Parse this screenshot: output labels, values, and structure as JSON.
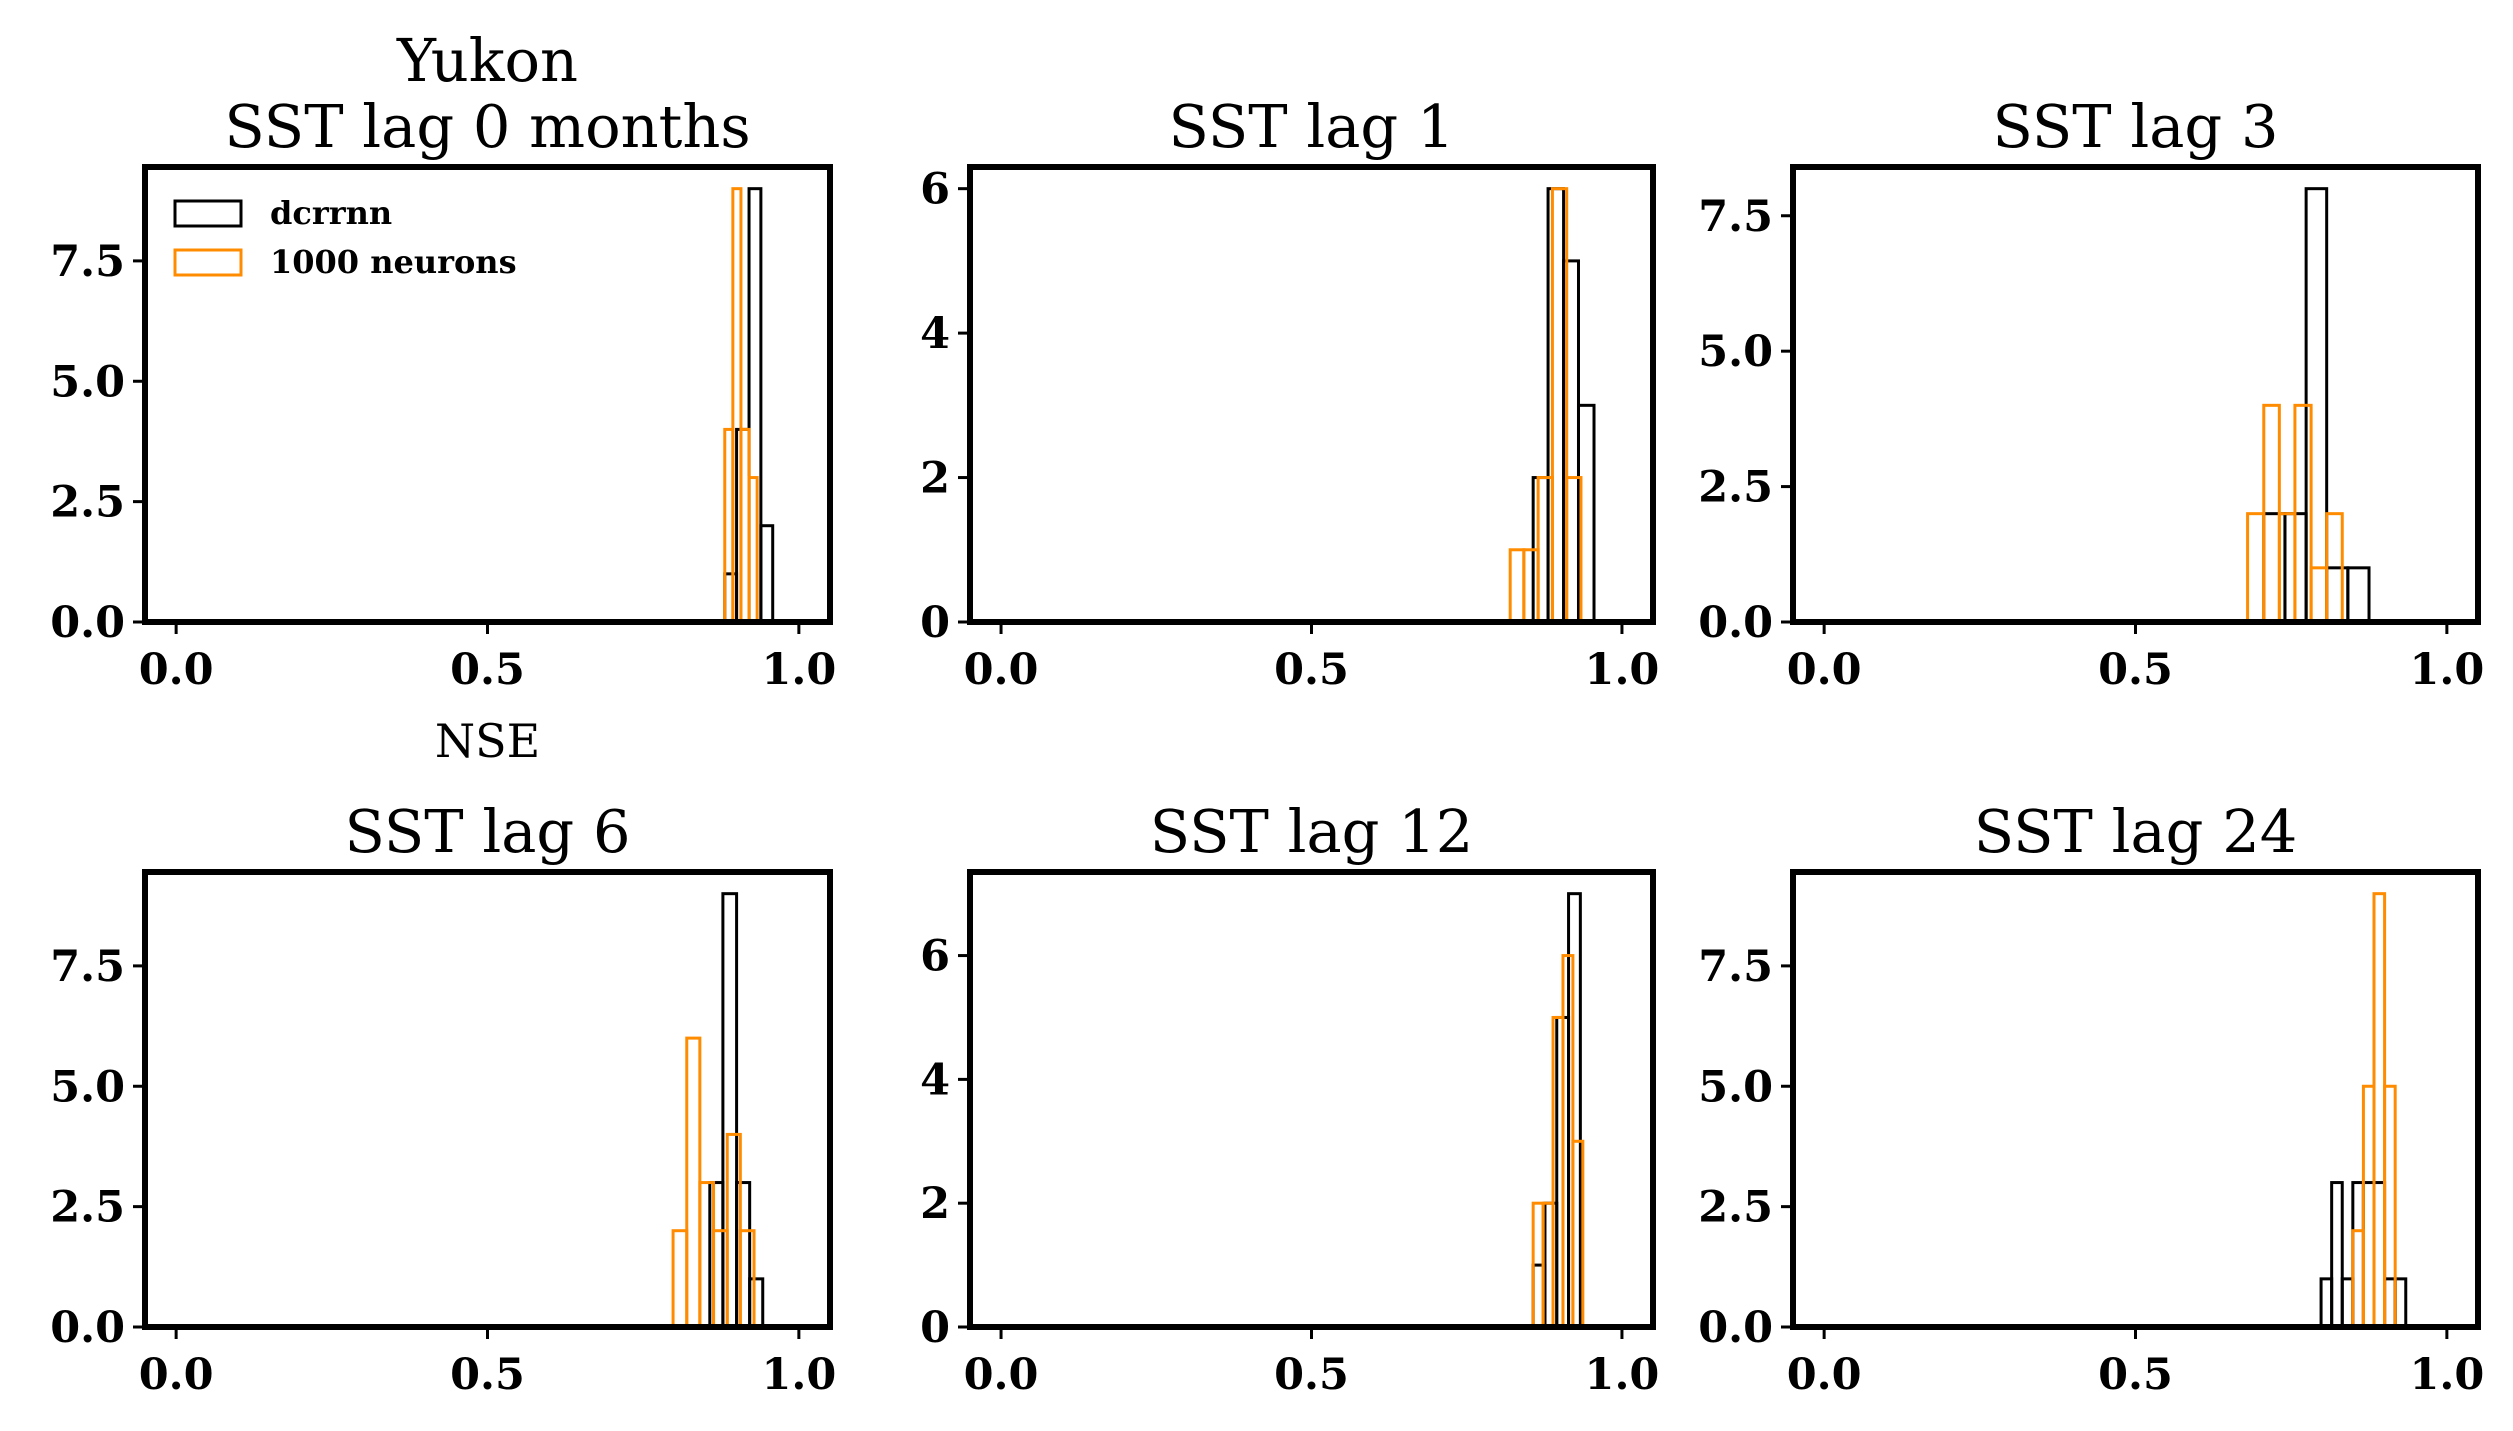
{
  "colors": {
    "dcrrnn": "#000000",
    "neurons": "#ff8c00"
  },
  "legend": {
    "entries": [
      "dcrrnn",
      "1000 neurons"
    ],
    "placement": "upper-left",
    "panel": 0
  },
  "chart_data": [
    {
      "type": "histogram",
      "title": "Yukon\nSST lag 0 months",
      "xlabel": "NSE",
      "xlim": [
        -0.05,
        1.05
      ],
      "ylim": [
        0,
        9.45
      ],
      "xticks": [
        "0.0",
        "0.5",
        "1.0"
      ],
      "xtick_values": [
        0,
        0.5,
        1
      ],
      "yticks": [
        "0.0",
        "2.5",
        "5.0",
        "7.5"
      ],
      "ytick_values": [
        0,
        2.5,
        5,
        7.5
      ],
      "series": [
        {
          "name": "dcrrnn",
          "bins": [
            [
              0.881,
              0.9
            ],
            [
              0.9,
              0.92
            ],
            [
              0.92,
              0.939
            ],
            [
              0.939,
              0.958
            ]
          ],
          "values": [
            1,
            4,
            9,
            2
          ]
        },
        {
          "name": "1000 neurons",
          "bins": [
            [
              0.881,
              0.894
            ],
            [
              0.894,
              0.907
            ],
            [
              0.907,
              0.92
            ],
            [
              0.92,
              0.933
            ]
          ],
          "values": [
            4,
            9,
            4,
            3
          ]
        }
      ]
    },
    {
      "type": "histogram",
      "title": "SST lag 1",
      "xlabel": "",
      "xlim": [
        -0.05,
        1.05
      ],
      "ylim": [
        0,
        6.3
      ],
      "xticks": [
        "0.0",
        "0.5",
        "1.0"
      ],
      "xtick_values": [
        0,
        0.5,
        1
      ],
      "yticks": [
        "0",
        "2",
        "4",
        "6"
      ],
      "ytick_values": [
        0,
        2,
        4,
        6
      ],
      "series": [
        {
          "name": "dcrrnn",
          "bins": [
            [
              0.857,
              0.881
            ],
            [
              0.881,
              0.906
            ],
            [
              0.906,
              0.93
            ],
            [
              0.93,
              0.955
            ]
          ],
          "values": [
            2,
            6,
            5,
            3
          ]
        },
        {
          "name": "1000 neurons",
          "bins": [
            [
              0.82,
              0.842
            ],
            [
              0.842,
              0.865
            ],
            [
              0.865,
              0.888
            ],
            [
              0.888,
              0.911
            ],
            [
              0.911,
              0.934
            ]
          ],
          "values": [
            1,
            1,
            2,
            6,
            2
          ]
        }
      ]
    },
    {
      "type": "histogram",
      "title": "SST lag 3",
      "xlabel": "",
      "xlim": [
        -0.05,
        1.05
      ],
      "ylim": [
        0,
        8.4
      ],
      "xticks": [
        "0.0",
        "0.5",
        "1.0"
      ],
      "xtick_values": [
        0,
        0.5,
        1
      ],
      "yticks": [
        "0.0",
        "2.5",
        "5.0",
        "7.5"
      ],
      "ytick_values": [
        0,
        2.5,
        5,
        7.5
      ],
      "series": [
        {
          "name": "dcrrnn",
          "bins": [
            [
              0.706,
              0.74
            ],
            [
              0.74,
              0.774
            ],
            [
              0.774,
              0.807
            ],
            [
              0.807,
              0.841
            ],
            [
              0.841,
              0.875
            ]
          ],
          "values": [
            2,
            2,
            8,
            1,
            1
          ]
        },
        {
          "name": "1000 neurons",
          "bins": [
            [
              0.68,
              0.706
            ],
            [
              0.706,
              0.731
            ],
            [
              0.731,
              0.756
            ],
            [
              0.756,
              0.782
            ],
            [
              0.782,
              0.807
            ],
            [
              0.807,
              0.832
            ]
          ],
          "values": [
            2,
            4,
            2,
            4,
            1,
            2
          ]
        }
      ]
    },
    {
      "type": "histogram",
      "title": "SST lag 6",
      "xlabel": "",
      "xlim": [
        -0.05,
        1.05
      ],
      "ylim": [
        0,
        9.45
      ],
      "xticks": [
        "0.0",
        "0.5",
        "1.0"
      ],
      "xtick_values": [
        0,
        0.5,
        1
      ],
      "yticks": [
        "0.0",
        "2.5",
        "5.0",
        "7.5"
      ],
      "ytick_values": [
        0,
        2.5,
        5,
        7.5
      ],
      "series": [
        {
          "name": "dcrrnn",
          "bins": [
            [
              0.857,
              0.878
            ],
            [
              0.878,
              0.9
            ],
            [
              0.9,
              0.921
            ],
            [
              0.921,
              0.942
            ]
          ],
          "values": [
            3,
            9,
            3,
            1
          ]
        },
        {
          "name": "1000 neurons",
          "bins": [
            [
              0.798,
              0.82
            ],
            [
              0.82,
              0.841
            ],
            [
              0.841,
              0.863
            ],
            [
              0.863,
              0.885
            ],
            [
              0.885,
              0.906
            ],
            [
              0.906,
              0.928
            ]
          ],
          "values": [
            2,
            6,
            3,
            2,
            4,
            2
          ]
        }
      ]
    },
    {
      "type": "histogram",
      "title": "SST lag 12",
      "xlabel": "",
      "xlim": [
        -0.05,
        1.05
      ],
      "ylim": [
        0,
        7.35
      ],
      "xticks": [
        "0.0",
        "0.5",
        "1.0"
      ],
      "xtick_values": [
        0,
        0.5,
        1
      ],
      "yticks": [
        "0",
        "2",
        "4",
        "6"
      ],
      "ytick_values": [
        0,
        2,
        4,
        6
      ],
      "series": [
        {
          "name": "dcrrnn",
          "bins": [
            [
              0.857,
              0.876
            ],
            [
              0.876,
              0.895
            ],
            [
              0.895,
              0.914
            ],
            [
              0.914,
              0.933
            ]
          ],
          "values": [
            1,
            2,
            5,
            7
          ]
        },
        {
          "name": "1000 neurons",
          "bins": [
            [
              0.857,
              0.873
            ],
            [
              0.873,
              0.889
            ],
            [
              0.889,
              0.905
            ],
            [
              0.905,
              0.921
            ],
            [
              0.921,
              0.937
            ]
          ],
          "values": [
            2,
            2,
            5,
            6,
            3
          ]
        }
      ]
    },
    {
      "type": "histogram",
      "title": "SST lag 24",
      "xlabel": "",
      "xlim": [
        -0.05,
        1.05
      ],
      "ylim": [
        0,
        9.45
      ],
      "xticks": [
        "0.0",
        "0.5",
        "1.0"
      ],
      "xtick_values": [
        0,
        0.5,
        1
      ],
      "yticks": [
        "0.0",
        "2.5",
        "5.0",
        "7.5"
      ],
      "ytick_values": [
        0,
        2.5,
        5,
        7.5
      ],
      "series": [
        {
          "name": "dcrrnn",
          "bins": [
            [
              0.798,
              0.815
            ],
            [
              0.815,
              0.832
            ],
            [
              0.832,
              0.849
            ],
            [
              0.849,
              0.866
            ],
            [
              0.866,
              0.883
            ],
            [
              0.883,
              0.9
            ],
            [
              0.9,
              0.917
            ],
            [
              0.917,
              0.934
            ]
          ],
          "values": [
            1,
            3,
            1,
            3,
            3,
            3,
            1,
            1
          ]
        },
        {
          "name": "1000 neurons",
          "bins": [
            [
              0.849,
              0.866
            ],
            [
              0.866,
              0.883
            ],
            [
              0.883,
              0.9
            ],
            [
              0.9,
              0.917
            ]
          ],
          "values": [
            2,
            5,
            9,
            5
          ]
        }
      ]
    }
  ]
}
